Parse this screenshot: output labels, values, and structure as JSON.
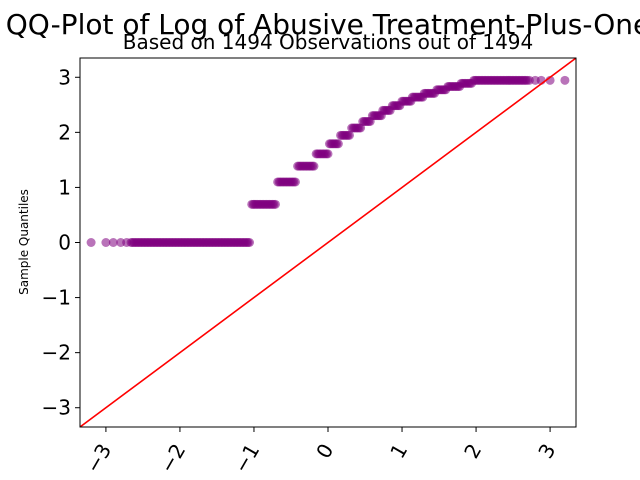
{
  "chart_data": {
    "type": "scatter",
    "title": "QQ-Plot of Log of Abusive Treatment-Plus-One",
    "subtitle": "Based on 1494 Observations out of 1494",
    "xlabel": "",
    "ylabel": "Sample Quantiles",
    "xlim": [
      -3.35,
      3.35
    ],
    "ylim": [
      -3.35,
      3.35
    ],
    "x_ticks": [
      -3,
      -2,
      -1,
      0,
      1,
      2,
      3
    ],
    "y_ticks": [
      -3,
      -2,
      -1,
      0,
      1,
      2,
      3
    ],
    "x_tick_labels": [
      "−3",
      "−2",
      "−1",
      "0",
      "1",
      "2",
      "3"
    ],
    "y_tick_labels": [
      "−3",
      "−2",
      "−1",
      "0",
      "1",
      "2",
      "3"
    ],
    "grid": false,
    "reference_line": {
      "from": [
        -3.35,
        -3.35
      ],
      "to": [
        3.35,
        3.35
      ],
      "color": "#ff0000"
    },
    "point_color": "#800080",
    "steps": [
      {
        "y": 0.0,
        "x_from": -3.2,
        "x_to": -1.05,
        "sparse_x": [
          -3.2,
          -3.0,
          -2.9,
          -2.8,
          -2.72,
          -2.66
        ]
      },
      {
        "y": 0.693,
        "x_from": -1.03,
        "x_to": -0.7
      },
      {
        "y": 1.099,
        "x_from": -0.68,
        "x_to": -0.43
      },
      {
        "y": 1.386,
        "x_from": -0.41,
        "x_to": -0.18
      },
      {
        "y": 1.609,
        "x_from": -0.16,
        "x_to": 0.0
      },
      {
        "y": 1.792,
        "x_from": 0.02,
        "x_to": 0.15
      },
      {
        "y": 1.946,
        "x_from": 0.17,
        "x_to": 0.3
      },
      {
        "y": 2.079,
        "x_from": 0.32,
        "x_to": 0.45
      },
      {
        "y": 2.197,
        "x_from": 0.47,
        "x_to": 0.58
      },
      {
        "y": 2.303,
        "x_from": 0.6,
        "x_to": 0.72
      },
      {
        "y": 2.398,
        "x_from": 0.74,
        "x_to": 0.85
      },
      {
        "y": 2.485,
        "x_from": 0.87,
        "x_to": 0.98
      },
      {
        "y": 2.565,
        "x_from": 1.0,
        "x_to": 1.12
      },
      {
        "y": 2.639,
        "x_from": 1.14,
        "x_to": 1.28
      },
      {
        "y": 2.708,
        "x_from": 1.3,
        "x_to": 1.45
      },
      {
        "y": 2.773,
        "x_from": 1.47,
        "x_to": 1.6
      },
      {
        "y": 2.833,
        "x_from": 1.62,
        "x_to": 1.78
      },
      {
        "y": 2.89,
        "x_from": 1.8,
        "x_to": 1.95
      },
      {
        "y": 2.944,
        "x_from": 1.97,
        "x_to": 3.2,
        "sparse_x": [
          2.72,
          2.8,
          2.88,
          3.0,
          3.2
        ]
      }
    ]
  }
}
